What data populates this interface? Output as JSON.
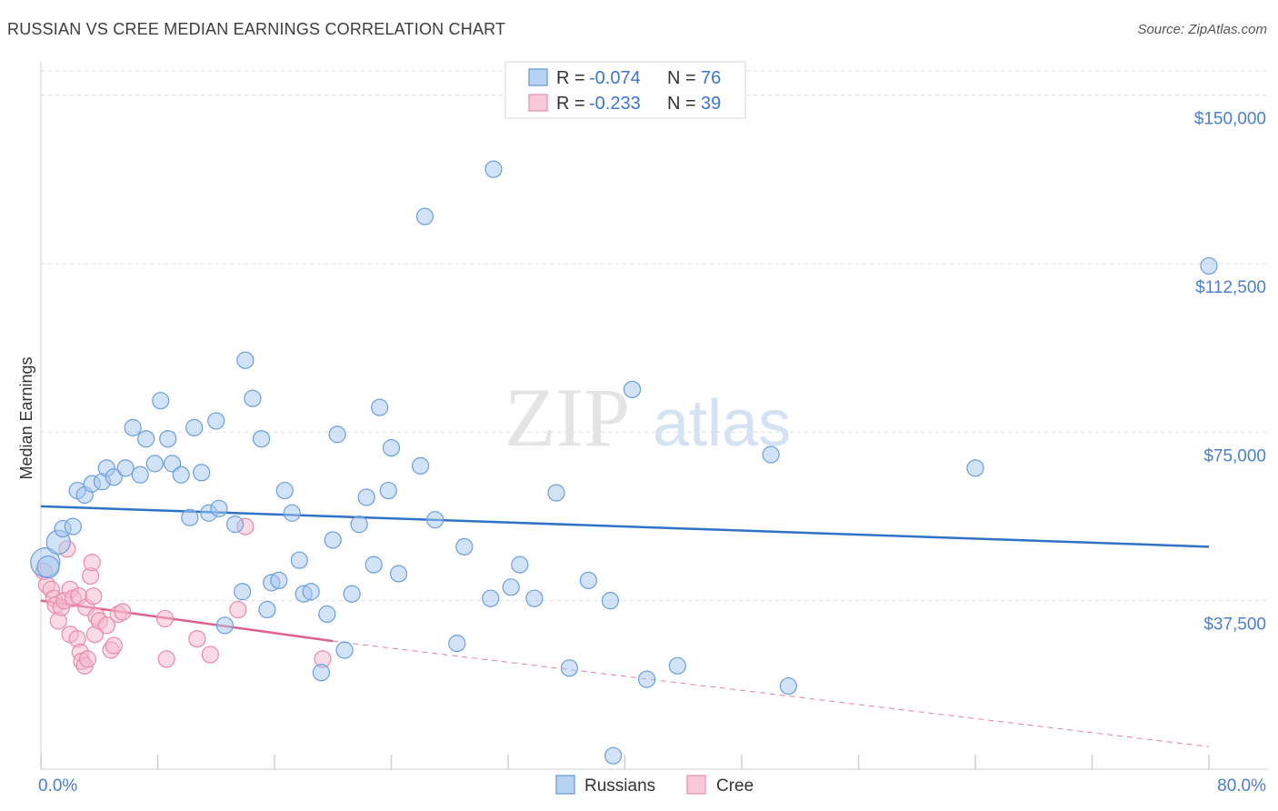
{
  "title": "RUSSIAN VS CREE MEDIAN EARNINGS CORRELATION CHART",
  "source": "Source: ZipAtlas.com",
  "watermark": {
    "zip": "ZIP",
    "atlas": "atlas"
  },
  "colors": {
    "russians_fill": "#a8c8f0",
    "russians_stroke": "#6a9edc",
    "russians_line": "#2f72c8",
    "cree_fill": "#f5b8cc",
    "cree_stroke": "#e88aaa",
    "cree_line": "#e0608c",
    "tick_label": "#4a7fd0",
    "grid": "#dddddd"
  },
  "legend": {
    "rows": [
      {
        "r_label": "R =",
        "r_value": "-0.074",
        "n_label": "N =",
        "n_value": "76",
        "series": "russians"
      },
      {
        "r_label": "R =",
        "r_value": "-0.233",
        "n_label": "N =",
        "n_value": "39",
        "series": "cree"
      }
    ]
  },
  "bottom_legend": [
    "Russians",
    "Cree"
  ],
  "chart_data": {
    "type": "scatter",
    "title": "RUSSIAN VS CREE MEDIAN EARNINGS CORRELATION CHART",
    "xlabel": "",
    "ylabel": "Median Earnings",
    "xlim": [
      0,
      80
    ],
    "ylim": [
      0,
      157000
    ],
    "x_tick_labels": [
      "0.0%",
      "80.0%"
    ],
    "y_ticks": [
      37500,
      75000,
      112500,
      150000
    ],
    "y_tick_labels": [
      "$37,500",
      "$75,000",
      "$112,500",
      "$150,000"
    ],
    "grid": true,
    "legend_position": "top-center",
    "series": [
      {
        "name": "Russians",
        "r": -0.074,
        "n": 76,
        "trend": {
          "x": [
            0,
            80
          ],
          "y": [
            58500,
            49500
          ],
          "dashed_extension": false
        },
        "points": [
          [
            0.3,
            46000,
            16
          ],
          [
            0.5,
            45000,
            12
          ],
          [
            1.2,
            50500,
            13
          ],
          [
            1.5,
            53500,
            9
          ],
          [
            2.2,
            54000,
            9
          ],
          [
            2.5,
            62000,
            9
          ],
          [
            3.0,
            61000,
            9
          ],
          [
            3.5,
            63500,
            9
          ],
          [
            4.2,
            64000,
            9
          ],
          [
            4.5,
            67000,
            9
          ],
          [
            5.0,
            65000,
            9
          ],
          [
            5.8,
            67000,
            9
          ],
          [
            6.3,
            76000,
            9
          ],
          [
            6.8,
            65500,
            9
          ],
          [
            7.2,
            73500,
            9
          ],
          [
            7.8,
            68000,
            9
          ],
          [
            8.2,
            82000,
            9
          ],
          [
            8.7,
            73500,
            9
          ],
          [
            9.0,
            68000,
            9
          ],
          [
            9.6,
            65500,
            9
          ],
          [
            10.2,
            56000,
            9
          ],
          [
            10.5,
            76000,
            9
          ],
          [
            11.0,
            66000,
            9
          ],
          [
            11.5,
            57000,
            9
          ],
          [
            12.0,
            77500,
            9
          ],
          [
            12.2,
            58000,
            9
          ],
          [
            12.6,
            32000,
            9
          ],
          [
            13.3,
            54500,
            9
          ],
          [
            13.8,
            39500,
            9
          ],
          [
            14.0,
            91000,
            9
          ],
          [
            14.5,
            82500,
            9
          ],
          [
            15.1,
            73500,
            9
          ],
          [
            15.5,
            35500,
            9
          ],
          [
            15.8,
            41500,
            9
          ],
          [
            16.3,
            42000,
            9
          ],
          [
            16.7,
            62000,
            9
          ],
          [
            17.2,
            57000,
            9
          ],
          [
            17.7,
            46500,
            9
          ],
          [
            18.0,
            39000,
            9
          ],
          [
            18.5,
            39500,
            9
          ],
          [
            19.2,
            21500,
            9
          ],
          [
            19.6,
            34500,
            9
          ],
          [
            20.0,
            51000,
            9
          ],
          [
            20.3,
            74500,
            9
          ],
          [
            20.8,
            26500,
            9
          ],
          [
            21.3,
            39000,
            9
          ],
          [
            21.8,
            54500,
            9
          ],
          [
            22.3,
            60500,
            9
          ],
          [
            22.8,
            45500,
            9
          ],
          [
            23.2,
            80500,
            9
          ],
          [
            23.8,
            62000,
            9
          ],
          [
            24.0,
            71500,
            9
          ],
          [
            24.5,
            43500,
            9
          ],
          [
            26.0,
            67500,
            9
          ],
          [
            26.3,
            123000,
            9
          ],
          [
            27.0,
            55500,
            9
          ],
          [
            28.5,
            28000,
            9
          ],
          [
            29.0,
            49500,
            9
          ],
          [
            30.8,
            38000,
            9
          ],
          [
            31.0,
            133500,
            9
          ],
          [
            32.2,
            40500,
            9
          ],
          [
            32.8,
            45500,
            9
          ],
          [
            33.8,
            38000,
            9
          ],
          [
            35.3,
            61500,
            9
          ],
          [
            36.2,
            22500,
            9
          ],
          [
            37.5,
            42000,
            9
          ],
          [
            39.0,
            37500,
            9
          ],
          [
            39.2,
            3000,
            9
          ],
          [
            40.5,
            84500,
            9
          ],
          [
            41.5,
            20000,
            9
          ],
          [
            43.6,
            23000,
            9
          ],
          [
            50.0,
            70000,
            9
          ],
          [
            51.2,
            18500,
            9
          ],
          [
            64.0,
            67000,
            9
          ],
          [
            80.0,
            112000,
            9
          ]
        ]
      },
      {
        "name": "Cree",
        "r": -0.233,
        "n": 39,
        "trend": {
          "x": [
            0,
            20
          ],
          "y": [
            37500,
            28500
          ],
          "dashed_extension": {
            "x": [
              20,
              80
            ],
            "y": [
              28500,
              5000
            ]
          }
        },
        "points": [
          [
            0.2,
            44000,
            9
          ],
          [
            0.4,
            41000,
            9
          ],
          [
            0.7,
            40000,
            9
          ],
          [
            0.9,
            38000,
            9
          ],
          [
            1.0,
            36500,
            9
          ],
          [
            1.2,
            33000,
            9
          ],
          [
            1.4,
            36000,
            9
          ],
          [
            1.6,
            37500,
            9
          ],
          [
            1.8,
            49000,
            9
          ],
          [
            2.0,
            40000,
            9
          ],
          [
            2.0,
            30000,
            9
          ],
          [
            2.2,
            38000,
            9
          ],
          [
            2.5,
            29000,
            9
          ],
          [
            2.6,
            38500,
            9
          ],
          [
            2.7,
            26000,
            9
          ],
          [
            2.8,
            24000,
            9
          ],
          [
            3.0,
            23000,
            9
          ],
          [
            3.1,
            36000,
            9
          ],
          [
            3.2,
            24500,
            9
          ],
          [
            3.4,
            43000,
            9
          ],
          [
            3.5,
            46000,
            9
          ],
          [
            3.6,
            38500,
            9
          ],
          [
            3.7,
            30000,
            9
          ],
          [
            3.8,
            34000,
            9
          ],
          [
            4.0,
            33000,
            9
          ],
          [
            4.5,
            32000,
            9
          ],
          [
            4.8,
            26500,
            9
          ],
          [
            5.0,
            27500,
            9
          ],
          [
            5.3,
            34500,
            9
          ],
          [
            5.6,
            35000,
            9
          ],
          [
            8.5,
            33500,
            9
          ],
          [
            8.6,
            24500,
            9
          ],
          [
            10.7,
            29000,
            9
          ],
          [
            11.6,
            25500,
            9
          ],
          [
            13.5,
            35500,
            9
          ],
          [
            14.0,
            54000,
            9
          ],
          [
            19.3,
            24500,
            9
          ]
        ]
      }
    ]
  }
}
